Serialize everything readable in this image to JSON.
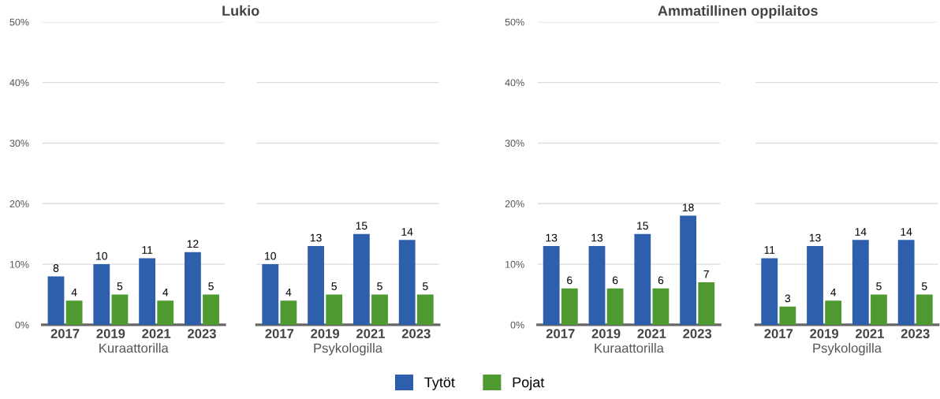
{
  "chart_data": [
    {
      "type": "bar",
      "title": "Lukio",
      "xlabel": "Kuraattorilla",
      "categories": [
        "2017",
        "2019",
        "2021",
        "2023"
      ],
      "series": [
        {
          "name": "Tytöt",
          "color": "#2e5fac",
          "values": [
            8,
            10,
            11,
            12
          ]
        },
        {
          "name": "Pojat",
          "color": "#4e9a31",
          "values": [
            4,
            5,
            4,
            5
          ]
        }
      ],
      "ylim": [
        0,
        50
      ],
      "yticks": [
        {
          "value": 0,
          "label": "0%"
        },
        {
          "value": 10,
          "label": "10%"
        },
        {
          "value": 20,
          "label": "20%"
        },
        {
          "value": 30,
          "label": "30%"
        },
        {
          "value": 40,
          "label": "40%"
        },
        {
          "value": 50,
          "label": "50%"
        }
      ],
      "grid": "y",
      "data_labels": true,
      "legend": "bottom"
    },
    {
      "type": "bar",
      "xlabel": "Psykologilla",
      "categories": [
        "2017",
        "2019",
        "2021",
        "2023"
      ],
      "series": [
        {
          "color": "#2e5fac",
          "values": [
            10,
            13,
            15,
            14
          ]
        },
        {
          "color": "#4e9a31",
          "values": [
            4,
            5,
            5,
            5
          ]
        }
      ],
      "ylim": [
        0,
        50
      ],
      "yticks": [
        0,
        10,
        20,
        30,
        40,
        50
      ],
      "tick_labels": "x",
      "grid": "y",
      "data_labels": true
    },
    {
      "type": "bar",
      "title": "Ammatillinen oppilaitos",
      "xlabel": "Kuraattorilla",
      "categories": [
        "2017",
        "2019",
        "2021",
        "2023"
      ],
      "series": [
        {
          "color": "#2e5fac",
          "values": [
            13,
            13,
            15,
            18
          ]
        },
        {
          "color": "#4e9a31",
          "values": [
            6,
            6,
            6,
            7
          ]
        }
      ],
      "ylim": [
        0,
        50
      ],
      "yticks": [
        {
          "value": 0,
          "label": "0%"
        },
        {
          "value": 10,
          "label": "10%"
        },
        {
          "value": 20,
          "label": "20%"
        },
        {
          "value": 30,
          "label": "30%"
        },
        {
          "value": 40,
          "label": "40%"
        },
        {
          "value": 50,
          "label": "50%"
        }
      ],
      "grid": "y",
      "data_labels": true
    },
    {
      "type": "bar",
      "xlabel": "Psykologilla",
      "categories": [
        "2017",
        "2019",
        "2021",
        "2023"
      ],
      "series": [
        {
          "color": "#2e5fac",
          "values": [
            11,
            13,
            14,
            14
          ]
        },
        {
          "color": "#4e9a31",
          "values": [
            3,
            4,
            5,
            5
          ]
        }
      ],
      "ylim": [
        0,
        50
      ],
      "yticks": [
        0,
        10,
        20,
        30,
        40,
        50
      ],
      "tick_labels": "x",
      "grid": "y",
      "data_labels": true
    }
  ]
}
